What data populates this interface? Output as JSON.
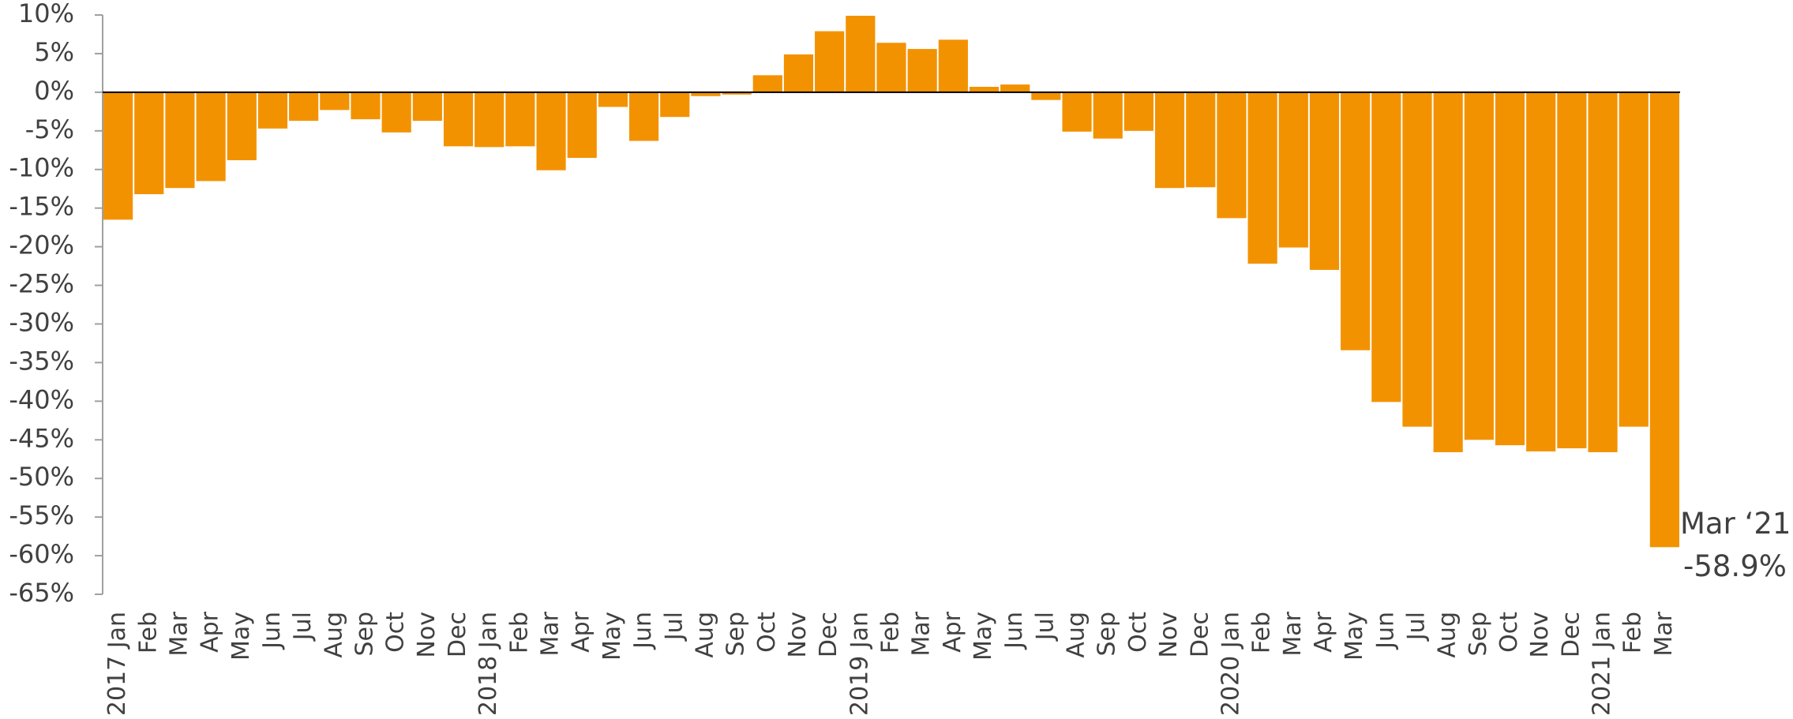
{
  "chart_data": {
    "type": "bar",
    "categories": [
      "2017 Jan",
      "Feb",
      "Mar",
      "Apr",
      "May",
      "Jun",
      "Jul",
      "Aug",
      "Sep",
      "Oct",
      "Nov",
      "Dec",
      "2018 Jan",
      "Feb",
      "Mar",
      "Apr",
      "May",
      "Jun",
      "Jul",
      "Aug",
      "Sep",
      "Oct",
      "Nov",
      "Dec",
      "2019 Jan",
      "Feb",
      "Mar",
      "Apr",
      "May",
      "Jun",
      "Jul",
      "Aug",
      "Sep",
      "Oct",
      "Nov",
      "Dec",
      "2020 Jan",
      "Feb",
      "Mar",
      "Apr",
      "May",
      "Jun",
      "Jul",
      "Aug",
      "Sep",
      "Oct",
      "Nov",
      "Dec",
      "2021 Jan",
      "Feb",
      "Mar"
    ],
    "values": [
      -16.5,
      -13.2,
      -12.4,
      -11.5,
      -8.8,
      -4.7,
      -3.7,
      -2.3,
      -3.5,
      -5.2,
      -3.7,
      -7.0,
      -7.1,
      -7.0,
      -10.1,
      -8.5,
      -1.9,
      -6.3,
      -3.2,
      -0.5,
      -0.3,
      2.2,
      4.9,
      7.9,
      9.9,
      6.4,
      5.6,
      6.8,
      0.7,
      1.0,
      -1.0,
      -5.1,
      -6.0,
      -5.0,
      -12.4,
      -12.3,
      -16.3,
      -22.2,
      -20.1,
      -23.0,
      -33.4,
      -40.1,
      -43.3,
      -46.6,
      -45.0,
      -45.7,
      -46.5,
      -46.1,
      -46.6,
      -43.3,
      -58.9
    ],
    "value_labels": [
      null,
      null,
      null,
      null,
      null,
      null,
      null,
      null,
      null,
      null,
      null,
      null,
      null,
      null,
      null,
      null,
      null,
      null,
      null,
      null,
      null,
      null,
      null,
      null,
      null,
      null,
      null,
      null,
      null,
      null,
      null,
      null,
      null,
      null,
      null,
      null,
      null,
      null,
      null,
      null,
      null,
      null,
      null,
      null,
      null,
      null,
      null,
      null,
      null,
      null,
      "-58.9%"
    ],
    "annotation": "Mar ‘21",
    "color": "#f39200",
    "ylim": [
      -65,
      10
    ],
    "yticks": [
      {
        "value": 10,
        "label": "10%"
      },
      {
        "value": 5,
        "label": "5%"
      },
      {
        "value": 0,
        "label": "0%"
      },
      {
        "value": -5,
        "label": "-5%"
      },
      {
        "value": -10,
        "label": "-10%"
      },
      {
        "value": -15,
        "label": "-15%"
      },
      {
        "value": -20,
        "label": "-20%"
      },
      {
        "value": -25,
        "label": "-25%"
      },
      {
        "value": -30,
        "label": "-30%"
      },
      {
        "value": -35,
        "label": "-35%"
      },
      {
        "value": -40,
        "label": "-40%"
      },
      {
        "value": -45,
        "label": "-45%"
      },
      {
        "value": -50,
        "label": "-50%"
      },
      {
        "value": -55,
        "label": "-55%"
      },
      {
        "value": -60,
        "label": "-60%"
      },
      {
        "value": -65,
        "label": "-65%"
      }
    ],
    "grid": false
  }
}
